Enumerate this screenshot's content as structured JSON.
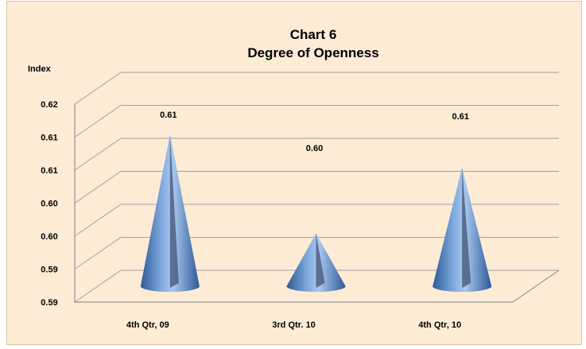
{
  "chart_data": {
    "type": "bar",
    "bar_shape": "cone",
    "title_line1": "Chart 6",
    "title_line2": "Degree of Openness",
    "ylabel": "Index",
    "xlabel": "",
    "categories": [
      "4th Qtr, 09",
      "3rd Qtr. 10",
      "4th Qtr, 10"
    ],
    "values": [
      0.613,
      0.598,
      0.608
    ],
    "data_labels": [
      "0.61",
      "0.60",
      "0.61"
    ],
    "ylim": [
      0.59,
      0.62
    ],
    "ytick_labels": [
      "0.59",
      "0.59",
      "0.60",
      "0.60",
      "0.61",
      "0.61",
      "0.62"
    ],
    "grid": true,
    "legend": "none",
    "colors": {
      "background": "#fdebd6",
      "cone": "#4a7fc4",
      "cone_dark": "#2d5a96",
      "cone_light": "#a9c8ef",
      "grid": "#a0a0a0"
    }
  }
}
